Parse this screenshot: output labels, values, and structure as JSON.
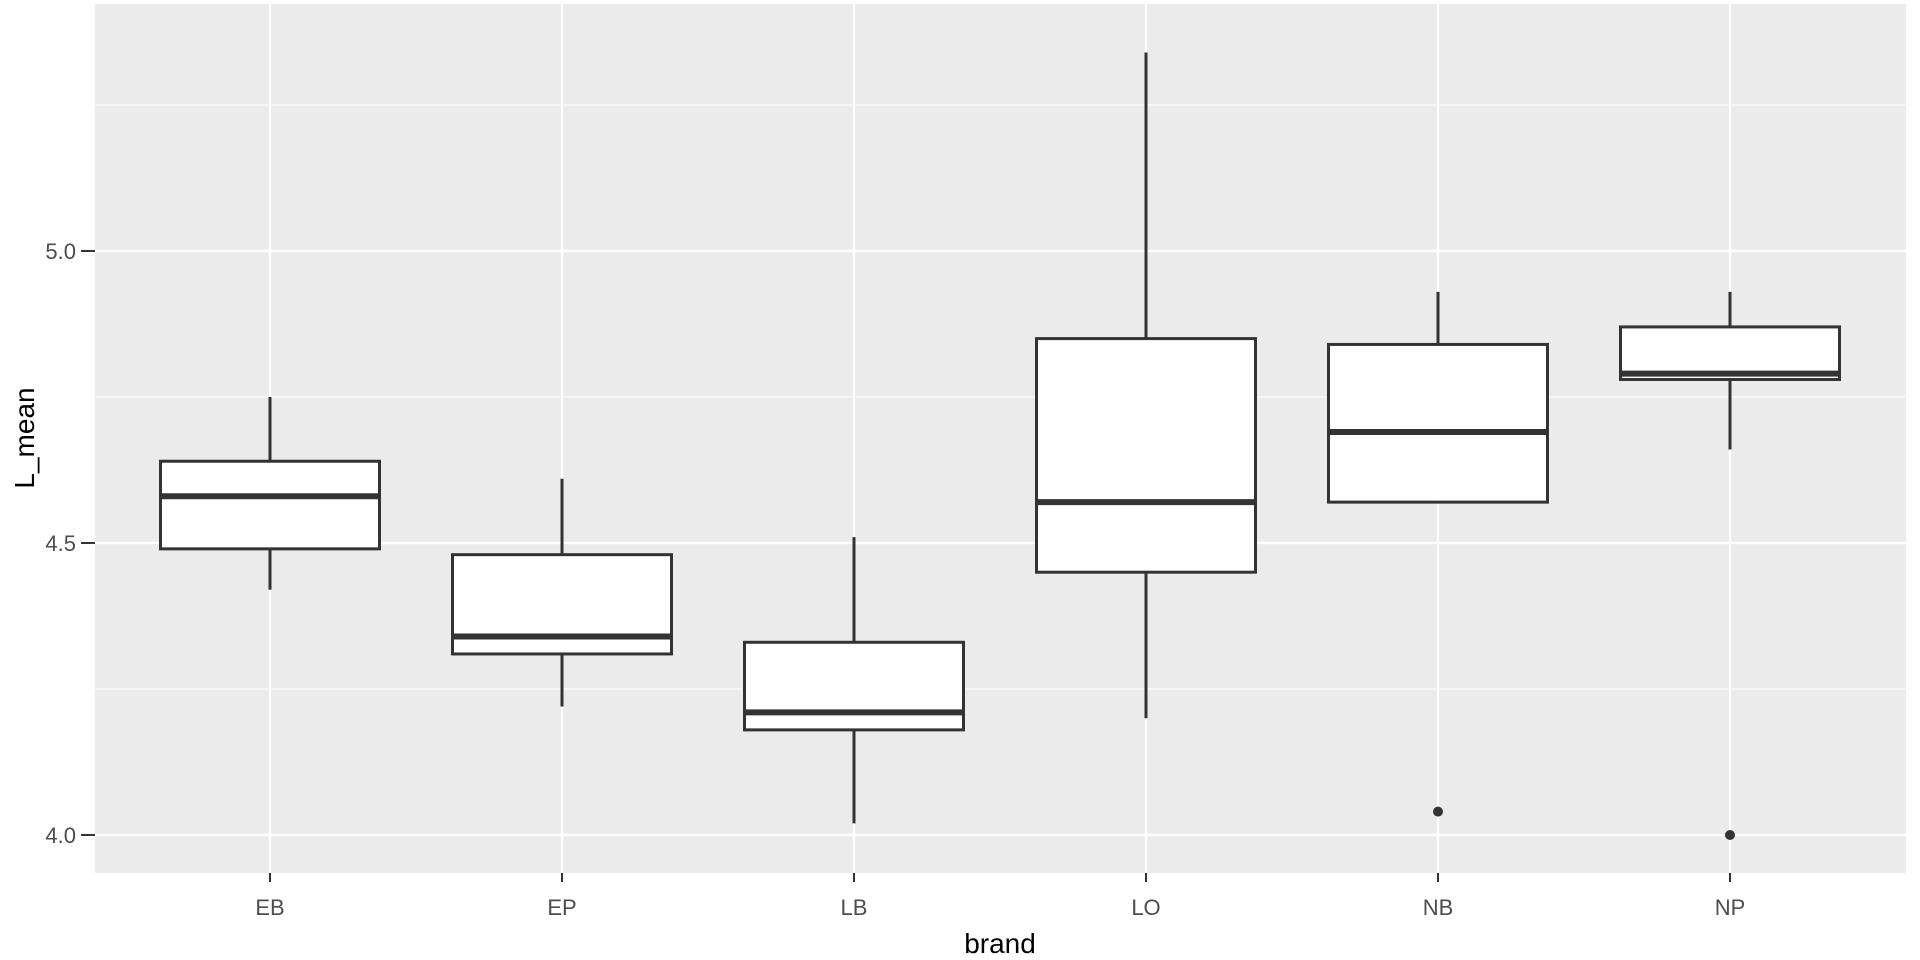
{
  "chart_data": {
    "type": "boxplot",
    "title": "",
    "xlabel": "brand",
    "ylabel": "L_mean",
    "categories": [
      "EB",
      "EP",
      "LB",
      "LO",
      "NB",
      "NP"
    ],
    "y_ticks": [
      4.0,
      4.5,
      5.0
    ],
    "y_tick_labels": [
      "4.0",
      "4.5",
      "5.0"
    ],
    "y_minor_gridlines": [
      4.25,
      4.75,
      5.25
    ],
    "ylim": [
      3.935,
      5.423
    ],
    "grid": true,
    "legend": "none",
    "panel": {
      "background": "#EBEBEB"
    },
    "series": [
      {
        "category": "EB",
        "whisker_low": 4.42,
        "q1": 4.49,
        "median": 4.58,
        "q3": 4.64,
        "whisker_high": 4.75,
        "outliers": []
      },
      {
        "category": "EP",
        "whisker_low": 4.22,
        "q1": 4.31,
        "median": 4.34,
        "q3": 4.48,
        "whisker_high": 4.61,
        "outliers": []
      },
      {
        "category": "LB",
        "whisker_low": 4.02,
        "q1": 4.18,
        "median": 4.21,
        "q3": 4.33,
        "whisker_high": 4.51,
        "outliers": []
      },
      {
        "category": "LO",
        "whisker_low": 4.2,
        "q1": 4.45,
        "median": 4.57,
        "q3": 4.85,
        "whisker_high": 5.34,
        "outliers": []
      },
      {
        "category": "NB",
        "whisker_low": 4.57,
        "q1": 4.57,
        "median": 4.69,
        "q3": 4.84,
        "whisker_high": 4.93,
        "outliers": [
          4.04
        ]
      },
      {
        "category": "NP",
        "whisker_low": 4.66,
        "q1": 4.78,
        "median": 4.79,
        "q3": 4.87,
        "whisker_high": 4.93,
        "outliers": [
          4.0
        ]
      }
    ],
    "colors": {
      "figure_background": "#FFFFFF",
      "panel_background": "#EBEBEB",
      "grid_major": "#FFFFFF",
      "grid_minor": "#FFFFFF",
      "box_fill": "#FFFFFF",
      "box_stroke": "#333333",
      "median_stroke": "#333333",
      "whisker_stroke": "#333333",
      "outlier_fill": "#333333",
      "tick_mark": "#333333",
      "tick_label_color": "#4D4D4D",
      "axis_title_color": "#000000"
    }
  }
}
